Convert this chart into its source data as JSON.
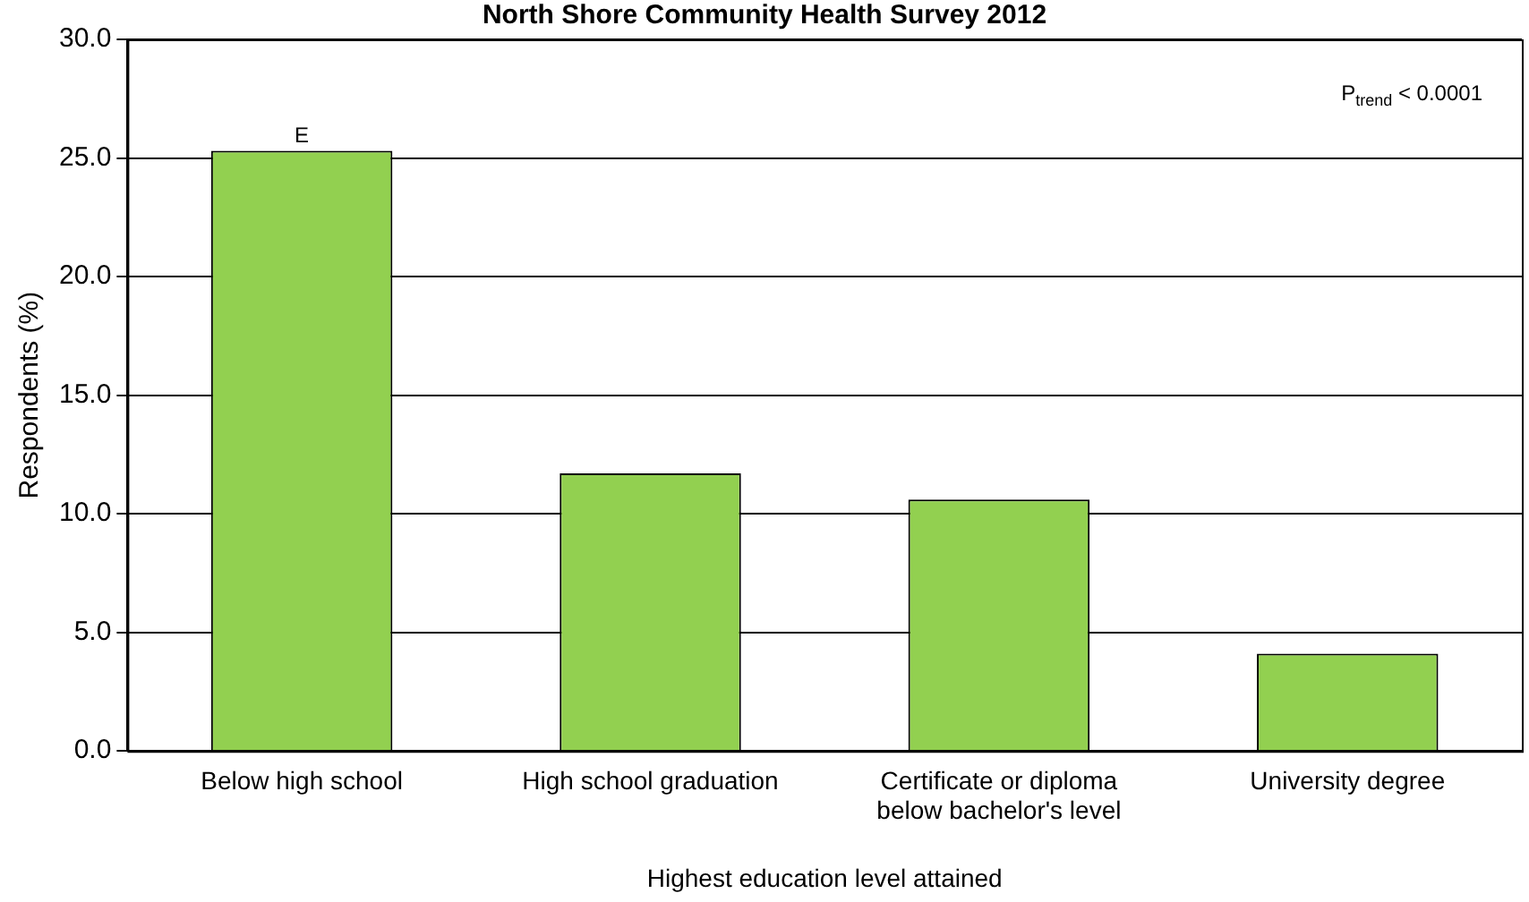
{
  "chart_data": {
    "type": "bar",
    "title": "North Shore Community Health Survey 2012",
    "xlabel": "Highest education level attained",
    "ylabel": "Respondents (%)",
    "categories": [
      "Below high school",
      "High school graduation",
      "Certificate or diploma below bachelor's level",
      "University degree"
    ],
    "values": [
      25.3,
      11.7,
      10.6,
      4.1
    ],
    "color": "#92d050",
    "ylim": [
      0,
      30
    ],
    "yticks": [
      {
        "value": 0,
        "label": "0.0"
      },
      {
        "value": 5,
        "label": "5.0"
      },
      {
        "value": 10,
        "label": "10.0"
      },
      {
        "value": 15,
        "label": "15.0"
      },
      {
        "value": 20,
        "label": "20.0"
      },
      {
        "value": 25,
        "label": "25.0"
      },
      {
        "value": 30,
        "label": "30.0"
      }
    ],
    "grid": "y",
    "annotations": [
      {
        "text": "E",
        "x": "Below high school",
        "y": 25.3
      },
      "P$_{trend}$ < 0.0001"
    ]
  }
}
